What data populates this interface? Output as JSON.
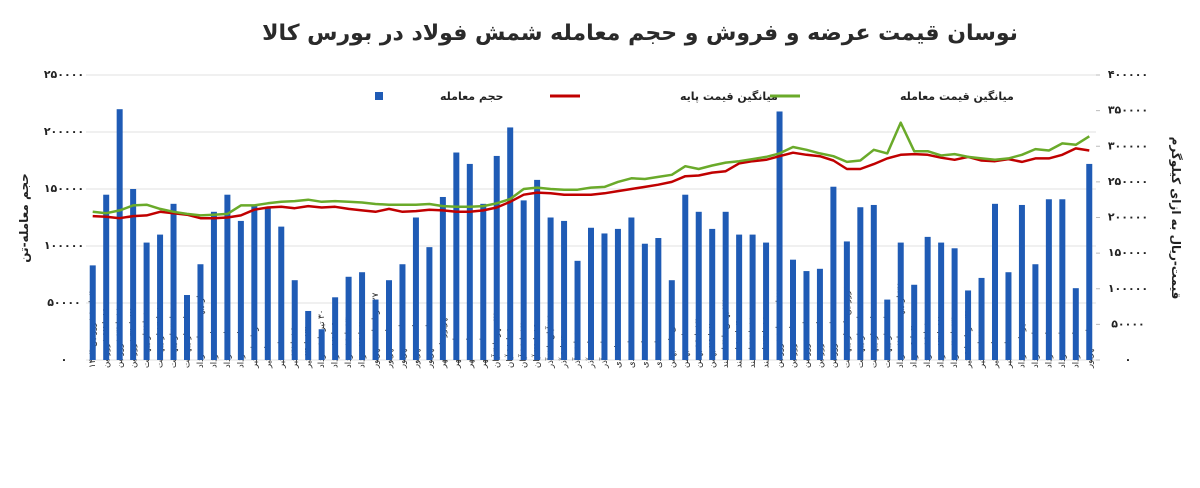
{
  "chart_data": {
    "type": "bar",
    "title": "نوسان قیمت عرضه و فروش و حجم معامله شمش فولاد در بورس کالا",
    "y_label": "حجم معامله-تن",
    "y2_label": "قیمت-ریال به ازای کیلوگرم",
    "categories": [
      "۴ تا ۱۰ فروردین ۱۴۰۳",
      "۱۱ تا ۱۷ فروردین",
      "۱۸ تا ۲۴ فروردین",
      "۲۵ تا ۳۱ فروردین",
      "۱ تا ۷ اردیبهشت",
      "۸ تا ۱۴ اردیبهشت",
      "۱۵ تا ۲۱ اردیبهشت",
      "۲۲ تا ۲۸ اردیبهشت",
      "۲۹ اردیبهشت تا ۴ خرداد",
      "۵ تا ۱۱ خرداد",
      "۱۲ تا ۱۸ خرداد",
      "۱۹ تا ۲۵ خرداد",
      "۲۶ خرداد تا ۱ تیر",
      "۲ تا ۸ تیر",
      "۹ تا ۱۵ تیر",
      "۱۶ تا ۲۲ تیر",
      "۲۳ تا ۲۹ تیر",
      "۳۰ تیر تا ۵ مرداد",
      "۶ تا ۱۲ مرداد",
      "۱۳ تا ۱۹ مرداد",
      "۲۰ تا ۲۶ مرداد",
      "۲۷ مرداد تا ۲ شهریور",
      "۳ تا ۹ شهریور",
      "۱۰ تا ۱۶ شهریور",
      "۱۷ تا ۲۳ شهریور",
      "۲۴ تا ۳۰ شهریور",
      "۳۱ شهریور تا ۶ مهر",
      "۷ تا ۱۳ مهر",
      "۱۴ تا ۲۰ مهر",
      "۲۱ تا ۲۷ مهر",
      "۲۸ مهر تا ۴ آبان",
      "۵ تا ۱۱ آبان",
      "۱۲ تا ۱۸ آبان",
      "۱۹ تا ۲۵ آبان",
      "۲۶ آبان تا ۲ آذر",
      "۳ تا ۹ آذر",
      "۱۰ تا ۱۶ آذر",
      "۱۷ تا ۲۳ آذر",
      "۲۴ تا ۳۰ آذر",
      "۱ تا ۷ دی",
      "۸ تا ۱۴ دی",
      "۱۵ تا ۲۱ دی",
      "۲۲ تا ۲۸ دی",
      "۲۹ دی تا ۵ بهمن",
      "۶ تا ۱۲ بهمن",
      "۱۳ تا ۱۹ بهمن",
      "۲۰ تا ۲۶ بهمن",
      "۲۷ بهمن تا ۳ اسفند",
      "۴ تا ۱۰ اسفند",
      "۱۱ تا ۱۷ اسفند",
      "۱۸ تا ۲۴ اسفند",
      "۲۵ اسفند تا ۱ فروردین",
      "۲ تا ۸ فروردین",
      "۹ تا ۱۵ فروردین",
      "۱۶ تا ۲۲ فروردین",
      "۲۳ تا ۲۹ فروردین",
      "۳۰ فروردین تا ۵ اردیبهشت",
      "۶ تا ۱۲ اردیبهشت",
      "۱۳ تا ۱۹ اردیبهشت",
      "۲۰ تا ۲۶ اردیبهشت",
      "۲۷ اردیبهشت تا ۲ خرداد",
      "۳ تا ۹ خرداد",
      "۱۰ تا ۱۶ خرداد",
      "۱۷ تا ۲۳ خرداد",
      "۲۴ تا ۳۰ خرداد",
      "۳۱ خرداد تا ۶ تیر",
      "۷ تا ۱۳ تیر",
      "۱۴ تا ۲۰ تیر",
      "۲۱ تا ۲۷ تیر",
      "۲۸ تیر تا ۳ مرداد",
      "۴ تا ۱۰ مرداد",
      "۱۱ تا ۱۷ مرداد",
      "۱۸ تا ۲۴ مرداد",
      "۲۵ تا ۳۱ مرداد",
      "۱ تا ۷ شهریور"
    ],
    "series": [
      {
        "name": "حجم معامله",
        "type": "bar",
        "axis": "y",
        "color": "#1f5bb5",
        "values": [
          83000,
          145000,
          220000,
          150000,
          103000,
          110000,
          137000,
          57000,
          84000,
          130000,
          145000,
          122000,
          135000,
          133000,
          117000,
          70000,
          43000,
          27000,
          55000,
          73000,
          77000,
          53000,
          70000,
          84000,
          125000,
          99000,
          143000,
          182000,
          172000,
          137000,
          179000,
          204000,
          140000,
          158000,
          125000,
          122000,
          87000,
          116000,
          111000,
          115000,
          125000,
          102000,
          107000,
          70000,
          145000,
          130000,
          115000,
          130000,
          110000,
          110000,
          103000,
          218000,
          88000,
          78000,
          80000,
          152000,
          104000,
          134000,
          136000,
          53000,
          103000,
          66000,
          108000,
          103000,
          98000,
          61000,
          72000,
          137000,
          77000,
          136000,
          84000,
          141000,
          141000,
          63000,
          172000
        ]
      },
      {
        "name": "میانگین قیمت پایه",
        "type": "line",
        "axis": "y2",
        "color": "#c00000",
        "values": [
          202000,
          201000,
          199000,
          202000,
          203000,
          208000,
          206000,
          204000,
          199000,
          199000,
          200000,
          203000,
          211000,
          214000,
          215000,
          213000,
          216000,
          214000,
          215000,
          212000,
          210000,
          208000,
          212000,
          208000,
          209000,
          211000,
          210000,
          208000,
          208000,
          210000,
          214000,
          222000,
          232000,
          235000,
          234000,
          232000,
          232000,
          232000,
          234000,
          237000,
          240000,
          243000,
          246000,
          250000,
          258000,
          259000,
          263000,
          265000,
          276000,
          279000,
          281000,
          286000,
          291000,
          288000,
          286000,
          280000,
          268000,
          268000,
          275000,
          283000,
          288000,
          289000,
          288000,
          284000,
          281000,
          285000,
          280000,
          279000,
          282000,
          278000,
          283000,
          283000,
          288000,
          297000,
          294000
        ]
      },
      {
        "name": "میانگین قیمت معامله",
        "type": "line",
        "axis": "y2",
        "color": "#6aaa2a",
        "values": [
          208000,
          206000,
          210000,
          217000,
          218000,
          212000,
          208000,
          205000,
          203000,
          204000,
          205000,
          217000,
          217000,
          220000,
          222000,
          223000,
          225000,
          222000,
          223000,
          222000,
          221000,
          219000,
          218000,
          218000,
          218000,
          219000,
          216000,
          215000,
          215000,
          216000,
          220000,
          226000,
          240000,
          242000,
          240000,
          239000,
          239000,
          242000,
          243000,
          250000,
          255000,
          254000,
          257000,
          260000,
          272000,
          268000,
          273000,
          277000,
          279000,
          282000,
          285000,
          290000,
          299000,
          295000,
          290000,
          286000,
          278000,
          280000,
          295000,
          290000,
          333000,
          293000,
          293000,
          287000,
          289000,
          285000,
          283000,
          281000,
          283000,
          288000,
          296000,
          294000,
          304000,
          302000,
          314000
        ]
      }
    ],
    "ylim": [
      0,
      250000
    ],
    "yticks": [
      {
        "value": 0,
        "label": "۰"
      },
      {
        "value": 50000,
        "label": "۵۰۰۰۰"
      },
      {
        "value": 100000,
        "label": "۱۰۰۰۰۰"
      },
      {
        "value": 150000,
        "label": "۱۵۰۰۰۰"
      },
      {
        "value": 200000,
        "label": "۲۰۰۰۰۰"
      },
      {
        "value": 250000,
        "label": "۲۵۰۰۰۰"
      }
    ],
    "y2lim": [
      0,
      400000
    ],
    "y2ticks": [
      {
        "value": 0,
        "label": "۰"
      },
      {
        "value": 50000,
        "label": "۵۰۰۰۰"
      },
      {
        "value": 100000,
        "label": "۱۰۰۰۰۰"
      },
      {
        "value": 150000,
        "label": "۱۵۰۰۰۰"
      },
      {
        "value": 200000,
        "label": "۲۰۰۰۰۰"
      },
      {
        "value": 250000,
        "label": "۲۵۰۰۰۰"
      },
      {
        "value": 300000,
        "label": "۳۰۰۰۰۰"
      },
      {
        "value": 350000,
        "label": "۳۵۰۰۰۰"
      },
      {
        "value": 400000,
        "label": "۴۰۰۰۰۰"
      }
    ],
    "grid": true
  }
}
